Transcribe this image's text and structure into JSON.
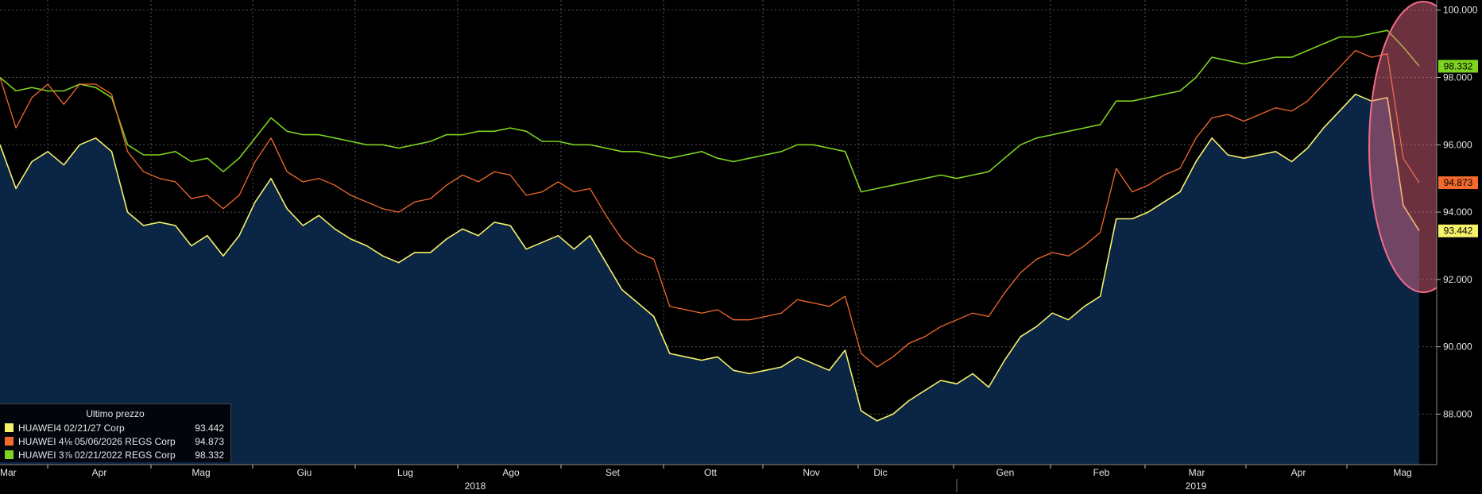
{
  "chart_data": {
    "type": "line",
    "ylim": [
      86.5,
      100.3
    ],
    "y_ticks": [
      "100.000",
      "98.000",
      "96.000",
      "94.000",
      "92.000",
      "90.000",
      "88.000"
    ],
    "x_ticks": [
      "Mar",
      "Apr",
      "Mag",
      "Giu",
      "Lug",
      "Ago",
      "Set",
      "Ott",
      "Nov",
      "Dic",
      "Gen",
      "Feb",
      "Mar",
      "Apr",
      "Mag"
    ],
    "years": [
      "2018",
      "2019"
    ],
    "grid": true,
    "legend_title": "Ultimo prezzo",
    "series": [
      {
        "name": "HUAWEI4 02/21/27 Corp",
        "last": "93.442",
        "color": "#f7f26a",
        "fill": "#0b2545",
        "values": [
          96.0,
          94.7,
          95.5,
          95.8,
          95.4,
          96.0,
          96.2,
          95.8,
          94.0,
          93.6,
          93.7,
          93.6,
          93.0,
          93.3,
          92.7,
          93.3,
          94.3,
          95.0,
          94.1,
          93.6,
          93.9,
          93.5,
          93.2,
          93.0,
          92.7,
          92.5,
          92.8,
          92.8,
          93.2,
          93.5,
          93.3,
          93.7,
          93.6,
          92.9,
          93.1,
          93.3,
          92.9,
          93.3,
          92.5,
          91.7,
          91.3,
          90.9,
          89.8,
          89.7,
          89.6,
          89.7,
          89.3,
          89.2,
          89.3,
          89.4,
          89.7,
          89.5,
          89.3,
          89.9,
          88.1,
          87.8,
          88.0,
          88.4,
          88.7,
          89.0,
          88.9,
          89.2,
          88.8,
          89.6,
          90.3,
          90.6,
          91.0,
          90.8,
          91.2,
          91.5,
          93.8,
          93.8,
          94.0,
          94.3,
          94.6,
          95.5,
          96.2,
          95.7,
          95.6,
          95.7,
          95.8,
          95.5,
          95.9,
          96.5,
          97.0,
          97.5,
          97.3,
          97.4,
          94.2,
          93.442
        ]
      },
      {
        "name": "HUAWEI 4⅛ 05/06/2026 REGS Corp",
        "last": "94.873",
        "color": "#f26a2d",
        "values": [
          98.0,
          96.5,
          97.4,
          97.8,
          97.2,
          97.8,
          97.8,
          97.5,
          95.8,
          95.2,
          95.0,
          94.9,
          94.4,
          94.5,
          94.1,
          94.5,
          95.5,
          96.2,
          95.2,
          94.9,
          95.0,
          94.8,
          94.5,
          94.3,
          94.1,
          94.0,
          94.3,
          94.4,
          94.8,
          95.1,
          94.9,
          95.2,
          95.1,
          94.5,
          94.6,
          94.9,
          94.6,
          94.7,
          93.9,
          93.2,
          92.8,
          92.6,
          91.2,
          91.1,
          91.0,
          91.1,
          90.8,
          90.8,
          90.9,
          91.0,
          91.4,
          91.3,
          91.2,
          91.5,
          89.8,
          89.4,
          89.7,
          90.1,
          90.3,
          90.6,
          90.8,
          91.0,
          90.9,
          91.6,
          92.2,
          92.6,
          92.8,
          92.7,
          93.0,
          93.4,
          95.3,
          94.6,
          94.8,
          95.1,
          95.3,
          96.2,
          96.8,
          96.9,
          96.7,
          96.9,
          97.1,
          97.0,
          97.3,
          97.8,
          98.3,
          98.8,
          98.6,
          98.7,
          95.6,
          94.873
        ]
      },
      {
        "name": "HUAWEI 3⅞ 02/21/2022 REGS Corp",
        "last": "98.332",
        "color": "#7ed321",
        "values": [
          98.0,
          97.6,
          97.7,
          97.6,
          97.6,
          97.8,
          97.7,
          97.4,
          96.0,
          95.7,
          95.7,
          95.8,
          95.5,
          95.6,
          95.2,
          95.6,
          96.2,
          96.8,
          96.4,
          96.3,
          96.3,
          96.2,
          96.1,
          96.0,
          96.0,
          95.9,
          96.0,
          96.1,
          96.3,
          96.3,
          96.4,
          96.4,
          96.5,
          96.4,
          96.1,
          96.1,
          96.0,
          96.0,
          95.9,
          95.8,
          95.8,
          95.7,
          95.6,
          95.7,
          95.8,
          95.6,
          95.5,
          95.6,
          95.7,
          95.8,
          96.0,
          96.0,
          95.9,
          95.8,
          94.6,
          94.7,
          94.8,
          94.9,
          95.0,
          95.1,
          95.0,
          95.1,
          95.2,
          95.6,
          96.0,
          96.2,
          96.3,
          96.4,
          96.5,
          96.6,
          97.3,
          97.3,
          97.4,
          97.5,
          97.6,
          98.0,
          98.6,
          98.5,
          98.4,
          98.5,
          98.6,
          98.6,
          98.8,
          99.0,
          99.2,
          99.2,
          99.3,
          99.4,
          98.9,
          98.332
        ]
      }
    ]
  },
  "legend": {
    "title": "Ultimo prezzo"
  },
  "highlight": {
    "color": "#f06c8a"
  }
}
